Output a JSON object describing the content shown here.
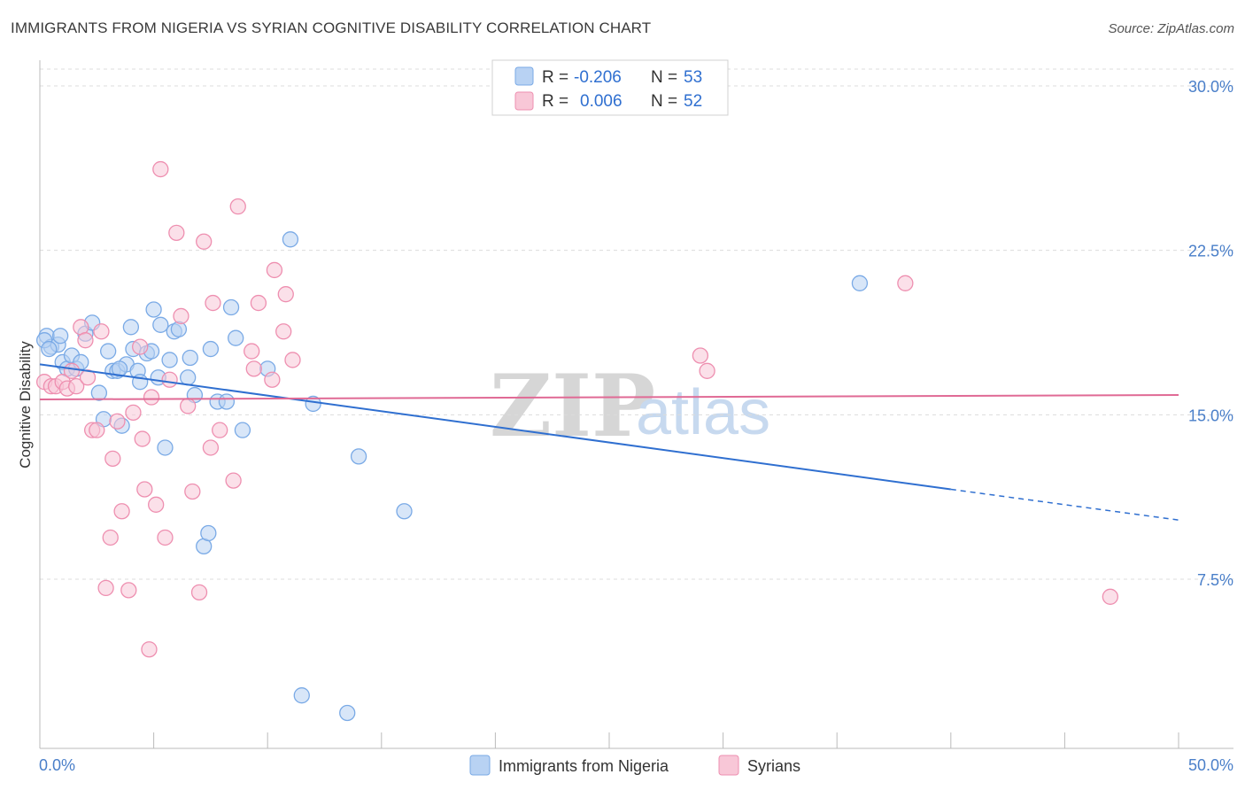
{
  "header": {
    "title": "IMMIGRANTS FROM NIGERIA VS SYRIAN COGNITIVE DISABILITY CORRELATION CHART",
    "source": "Source: ZipAtlas.com"
  },
  "watermark": {
    "zip": "ZIP",
    "atlas": "atlas"
  },
  "legend_top": {
    "rows": [
      {
        "r_label": "R =",
        "r_value": "-0.206",
        "n_label": "N =",
        "n_value": "53",
        "color": "#a9c8f0"
      },
      {
        "r_label": "R =",
        "r_value": "0.006",
        "n_label": "N =",
        "n_value": "52",
        "color": "#f6b8cc"
      }
    ]
  },
  "chart_data": {
    "type": "scatter",
    "title": "IMMIGRANTS FROM NIGERIA VS SYRIAN COGNITIVE DISABILITY CORRELATION CHART",
    "xlabel": "",
    "ylabel": "Cognitive Disability",
    "xlim": [
      0,
      50
    ],
    "ylim": [
      0,
      31
    ],
    "x_tick_labels": [
      {
        "value": 0,
        "label": "0.0%"
      },
      {
        "value": 50,
        "label": "50.0%"
      }
    ],
    "y_tick_labels": [
      {
        "value": 7.5,
        "label": "7.5%"
      },
      {
        "value": 15,
        "label": "15.0%"
      },
      {
        "value": 22.5,
        "label": "22.5%"
      },
      {
        "value": 30,
        "label": "30.0%"
      }
    ],
    "grid": true,
    "legend": "top-center",
    "series": [
      {
        "name": "Immigrants from Nigeria",
        "color": "#7aaae6",
        "fill": "#b8d2f3",
        "line_color": "#2f6fd0",
        "trend": {
          "x0": 0,
          "y0": 17.3,
          "x1": 40,
          "y1": 11.6,
          "dash_x1": 50,
          "dash_y1": 10.2
        },
        "points": [
          [
            0.3,
            18.6
          ],
          [
            0.5,
            18.1
          ],
          [
            0.8,
            18.2
          ],
          [
            0.9,
            18.6
          ],
          [
            1.0,
            17.4
          ],
          [
            1.2,
            17.1
          ],
          [
            1.4,
            17.7
          ],
          [
            1.6,
            17.1
          ],
          [
            1.8,
            17.4
          ],
          [
            2.0,
            18.7
          ],
          [
            2.3,
            19.2
          ],
          [
            2.6,
            16.0
          ],
          [
            2.8,
            14.8
          ],
          [
            3.0,
            17.9
          ],
          [
            3.2,
            17.0
          ],
          [
            3.4,
            17.0
          ],
          [
            3.6,
            14.5
          ],
          [
            3.8,
            17.3
          ],
          [
            4.0,
            19.0
          ],
          [
            4.1,
            18.0
          ],
          [
            4.3,
            17.0
          ],
          [
            4.4,
            16.5
          ],
          [
            4.7,
            17.8
          ],
          [
            4.9,
            17.9
          ],
          [
            5.0,
            19.8
          ],
          [
            5.2,
            16.7
          ],
          [
            5.3,
            19.1
          ],
          [
            5.5,
            13.5
          ],
          [
            5.7,
            17.5
          ],
          [
            5.9,
            18.8
          ],
          [
            6.1,
            18.9
          ],
          [
            6.5,
            16.7
          ],
          [
            6.6,
            17.6
          ],
          [
            6.8,
            15.9
          ],
          [
            7.2,
            9.0
          ],
          [
            7.4,
            9.6
          ],
          [
            7.5,
            18.0
          ],
          [
            7.8,
            15.6
          ],
          [
            8.2,
            15.6
          ],
          [
            8.4,
            19.9
          ],
          [
            8.6,
            18.5
          ],
          [
            8.9,
            14.3
          ],
          [
            10.0,
            17.1
          ],
          [
            11.0,
            23.0
          ],
          [
            11.5,
            2.2
          ],
          [
            12.0,
            15.5
          ],
          [
            13.5,
            1.4
          ],
          [
            14.0,
            13.1
          ],
          [
            16.0,
            10.6
          ],
          [
            36.0,
            21.0
          ],
          [
            0.2,
            18.4
          ],
          [
            0.4,
            18.0
          ],
          [
            3.5,
            17.1
          ]
        ]
      },
      {
        "name": "Syrians",
        "color": "#ee8fb0",
        "fill": "#f8c7d7",
        "line_color": "#e06a95",
        "trend": {
          "x0": 0,
          "y0": 15.7,
          "x1": 50,
          "y1": 15.9
        },
        "points": [
          [
            0.2,
            16.5
          ],
          [
            0.5,
            16.3
          ],
          [
            0.7,
            16.3
          ],
          [
            1.0,
            16.5
          ],
          [
            1.2,
            16.2
          ],
          [
            1.4,
            17.0
          ],
          [
            1.6,
            16.3
          ],
          [
            1.8,
            19.0
          ],
          [
            2.0,
            18.4
          ],
          [
            2.1,
            16.7
          ],
          [
            2.3,
            14.3
          ],
          [
            2.5,
            14.3
          ],
          [
            2.7,
            18.8
          ],
          [
            2.9,
            7.1
          ],
          [
            3.1,
            9.4
          ],
          [
            3.2,
            13.0
          ],
          [
            3.4,
            14.7
          ],
          [
            3.6,
            10.6
          ],
          [
            3.9,
            7.0
          ],
          [
            4.1,
            15.1
          ],
          [
            4.4,
            18.1
          ],
          [
            4.5,
            13.9
          ],
          [
            4.6,
            11.6
          ],
          [
            4.9,
            15.8
          ],
          [
            5.1,
            10.9
          ],
          [
            5.3,
            26.2
          ],
          [
            5.5,
            9.4
          ],
          [
            5.7,
            16.6
          ],
          [
            6.0,
            23.3
          ],
          [
            6.2,
            19.5
          ],
          [
            6.5,
            15.4
          ],
          [
            6.7,
            11.5
          ],
          [
            7.0,
            6.9
          ],
          [
            7.2,
            22.9
          ],
          [
            7.5,
            13.5
          ],
          [
            7.6,
            20.1
          ],
          [
            7.9,
            14.3
          ],
          [
            8.5,
            12.0
          ],
          [
            8.7,
            24.5
          ],
          [
            9.3,
            17.9
          ],
          [
            9.4,
            17.1
          ],
          [
            9.6,
            20.1
          ],
          [
            10.2,
            16.6
          ],
          [
            10.3,
            21.6
          ],
          [
            10.7,
            18.8
          ],
          [
            10.8,
            20.5
          ],
          [
            11.1,
            17.5
          ],
          [
            4.8,
            4.3
          ],
          [
            29.0,
            17.7
          ],
          [
            29.3,
            17.0
          ],
          [
            38.0,
            21.0
          ],
          [
            47.0,
            6.7
          ]
        ]
      }
    ]
  }
}
